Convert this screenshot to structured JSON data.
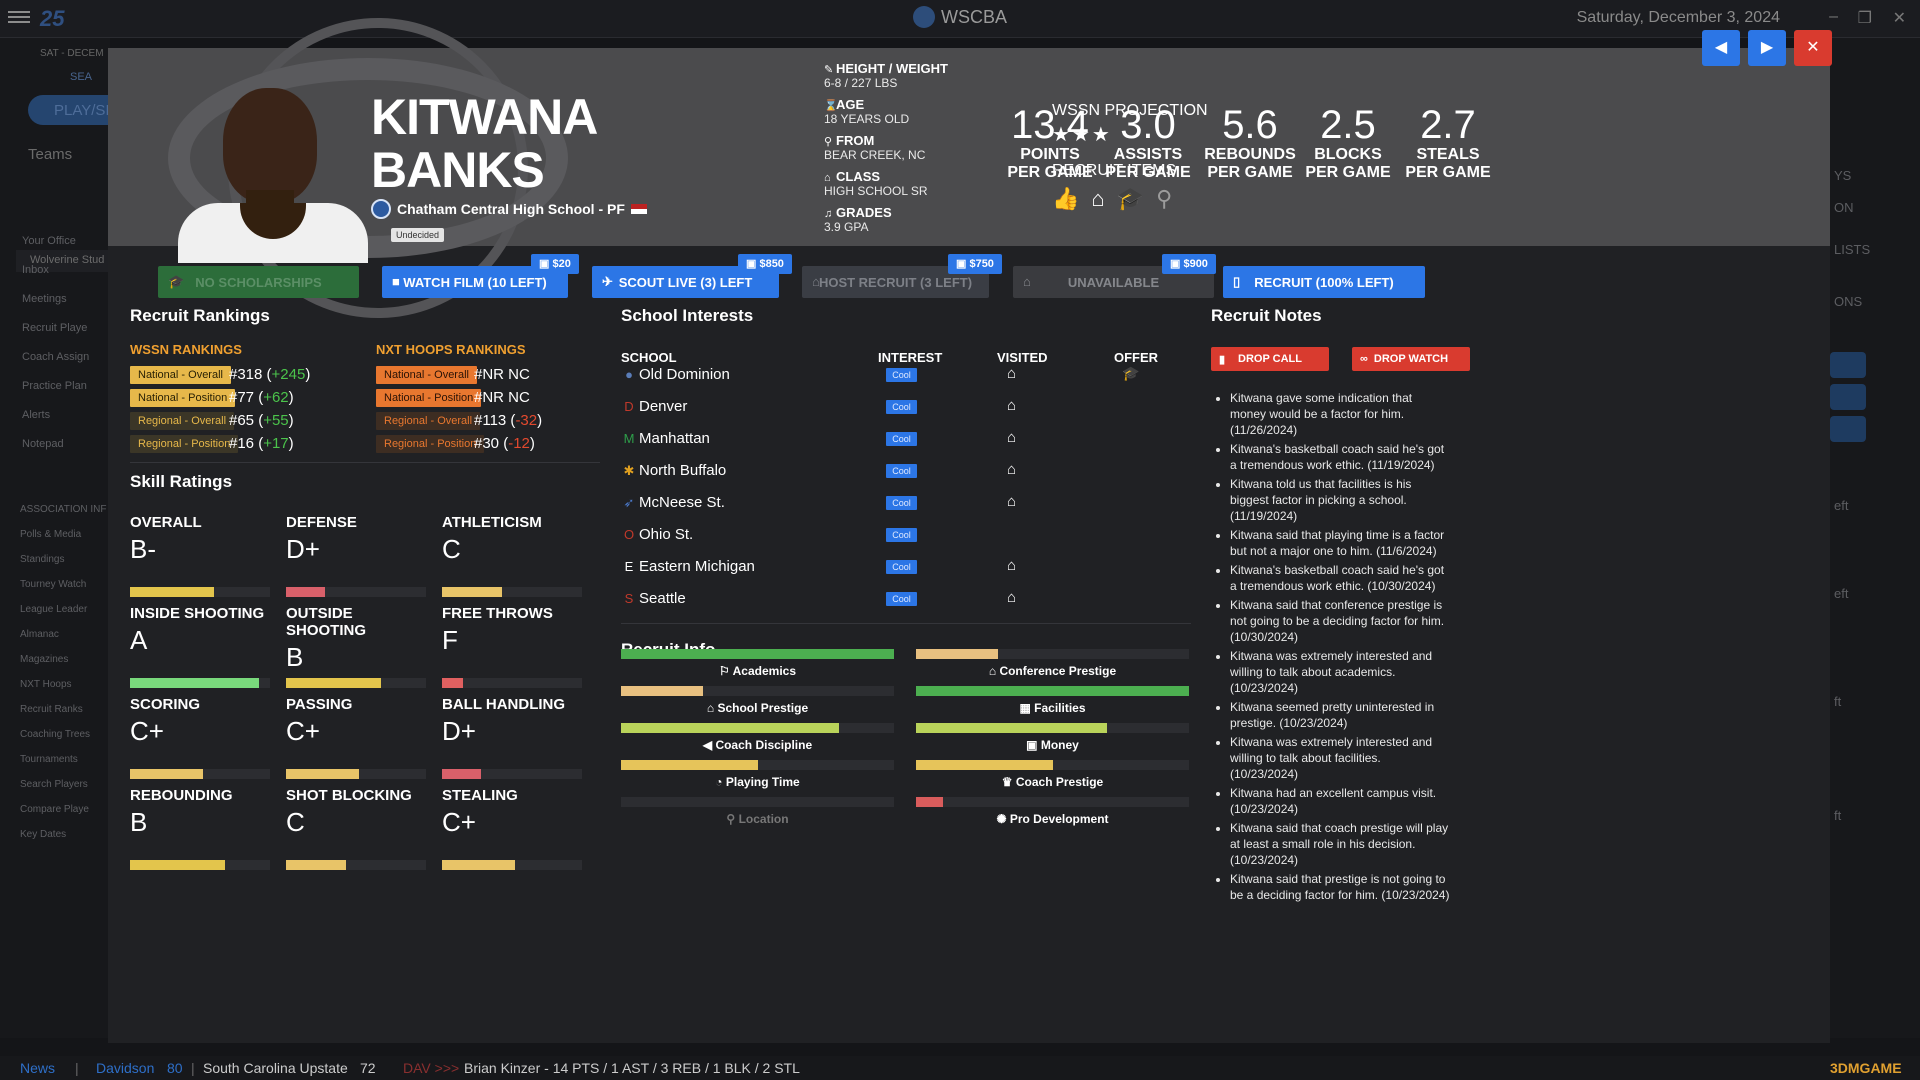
{
  "app": {
    "logo_text": "25",
    "title": "WSCBA",
    "date": "Saturday, December 3, 2024",
    "window_controls": [
      "–",
      "❐",
      "✕"
    ]
  },
  "sidebar": {
    "date_strip": "SAT - DECEM",
    "search": "SEA",
    "play": "PLAY/SI",
    "teams": "Teams",
    "club": "Wolverine Stud",
    "items": [
      "Your Office",
      "Inbox",
      "Meetings",
      "Recruit Playe",
      "Coach Assign",
      "Practice Plan",
      "Alerts",
      "Notepad"
    ],
    "assoc_heading": "ASSOCIATION INF",
    "assoc_items": [
      "Polls & Media",
      "Standings",
      "Tourney Watch",
      "League Leader",
      "Almanac",
      "Magazines",
      "NXT Hoops",
      "Recruit Ranks",
      "Coaching Trees",
      "Tournaments",
      "Search Players",
      "Compare Playe",
      "Key Dates"
    ]
  },
  "right_bg": [
    "YS",
    "ON",
    "LISTS",
    "ONS",
    "eft",
    "eft",
    "ft",
    "ft"
  ],
  "player": {
    "first_name": "KITWANA",
    "last_name": "BANKS",
    "school_line": "Chatham Central High School - PF",
    "status": "Undecided",
    "bio": [
      {
        "icon": "ruler-icon",
        "glyph": "✎",
        "label": "HEIGHT / WEIGHT",
        "value": "6-8 / 227 LBS"
      },
      {
        "icon": "hourglass-icon",
        "glyph": "⌛",
        "label": "AGE",
        "value": "18 YEARS OLD"
      },
      {
        "icon": "location-pin-icon",
        "glyph": "⚲",
        "label": "FROM",
        "value": "BEAR CREEK, NC"
      },
      {
        "icon": "school-icon",
        "glyph": "⌂",
        "label": "CLASS",
        "value": "HIGH SCHOOL SR"
      },
      {
        "icon": "grades-icon",
        "glyph": "♫",
        "label": "GRADES",
        "value": "3.9 GPA"
      }
    ],
    "projection_label": "WSSN PROJECTION",
    "projection_stars": "★★★",
    "projection_star_count": 3,
    "recruit_items_label": "RECRUIT ITEMS",
    "stats": [
      {
        "value": "13.4",
        "line1": "POINTS",
        "line2": "PER GAME"
      },
      {
        "value": "3.0",
        "line1": "ASSISTS",
        "line2": "PER GAME"
      },
      {
        "value": "5.6",
        "line1": "REBOUNDS",
        "line2": "PER GAME"
      },
      {
        "value": "2.5",
        "line1": "BLOCKS",
        "line2": "PER GAME"
      },
      {
        "value": "2.7",
        "line1": "STEALS",
        "line2": "PER GAME"
      }
    ]
  },
  "nav_buttons": {
    "prev": "◀",
    "next": "▶",
    "close": "✕"
  },
  "actions": [
    {
      "label": "NO SCHOLARSHIPS",
      "price": "",
      "color": "#2c6d3a",
      "text_color": "#5b8f66"
    },
    {
      "label": "WATCH FILM (10 LEFT)",
      "price": "$20",
      "color": "#2c76e6",
      "text_color": "#ffffff"
    },
    {
      "label": "SCOUT LIVE (3) LEFT",
      "price": "$850",
      "color": "#2c76e6",
      "text_color": "#ffffff"
    },
    {
      "label": "HOST RECRUIT (3 LEFT)",
      "price": "$750",
      "color": "#3a3d44",
      "text_color": "#7d8087"
    },
    {
      "label": "UNAVAILABLE",
      "price": "$900",
      "color": "#3a3b3f",
      "text_color": "#85878c"
    },
    {
      "label": "RECRUIT (100% LEFT)",
      "price": "",
      "color": "#2c76e6",
      "text_color": "#ffffff"
    }
  ],
  "rankings": {
    "title": "Recruit Rankings",
    "wssn": {
      "heading": "WSSN RANKINGS",
      "rows": [
        {
          "tag": "National - Overall",
          "tag_style": "solid-yellow",
          "rank": "#318",
          "open": " (",
          "delta": "+245",
          "close": ")",
          "dir": "up"
        },
        {
          "tag": "National - Position",
          "tag_style": "solid-yellow",
          "rank": "#77",
          "open": " (",
          "delta": "+62",
          "close": ")",
          "dir": "up"
        },
        {
          "tag": "Regional - Overall",
          "tag_style": "dim-yellow",
          "rank": "#65",
          "open": " (",
          "delta": "+55",
          "close": ")",
          "dir": "up"
        },
        {
          "tag": "Regional - Position",
          "tag_style": "dim-yellow",
          "rank": "#16",
          "open": " (",
          "delta": "+17",
          "close": ")",
          "dir": "up"
        }
      ]
    },
    "nxt": {
      "heading": "NXT HOOPS RANKINGS",
      "rows": [
        {
          "tag": "National - Overall",
          "tag_style": "solid-orange",
          "rank": "#NR NC",
          "open": "",
          "delta": "",
          "close": "",
          "dir": ""
        },
        {
          "tag": "National - Position",
          "tag_style": "solid-orange",
          "rank": "#NR NC",
          "open": "",
          "delta": "",
          "close": "",
          "dir": ""
        },
        {
          "tag": "Regional - Overall",
          "tag_style": "dim-orange",
          "rank": "#113",
          "open": " (",
          "delta": "-32",
          "close": ")",
          "dir": "down"
        },
        {
          "tag": "Regional - Position",
          "tag_style": "dim-orange",
          "rank": "#30",
          "open": " (",
          "delta": "-12",
          "close": ")",
          "dir": "down"
        }
      ]
    }
  },
  "skills": {
    "title": "Skill Ratings",
    "items": [
      {
        "name": "OVERALL",
        "grade": "B-",
        "level": 0.6,
        "color": "#e3c54c"
      },
      {
        "name": "DEFENSE",
        "grade": "D+",
        "level": 0.28,
        "color": "#d9606a"
      },
      {
        "name": "ATHLETICISM",
        "grade": "C",
        "level": 0.43,
        "color": "#e8c468"
      },
      {
        "name": "INSIDE SHOOTING",
        "grade": "A",
        "level": 0.92,
        "color": "#79d97c"
      },
      {
        "name": "OUTSIDE SHOOTING",
        "grade": "B",
        "level": 0.68,
        "color": "#e3c54c"
      },
      {
        "name": "FREE THROWS",
        "grade": "F",
        "level": 0.15,
        "color": "#e06060"
      },
      {
        "name": "SCORING",
        "grade": "C+",
        "level": 0.52,
        "color": "#e8c468"
      },
      {
        "name": "PASSING",
        "grade": "C+",
        "level": 0.52,
        "color": "#e8c468"
      },
      {
        "name": "BALL HANDLING",
        "grade": "D+",
        "level": 0.28,
        "color": "#d9606a"
      },
      {
        "name": "REBOUNDING",
        "grade": "B",
        "level": 0.68,
        "color": "#e3c54c"
      },
      {
        "name": "SHOT BLOCKING",
        "grade": "C",
        "level": 0.43,
        "color": "#e8c468"
      },
      {
        "name": "STEALING",
        "grade": "C+",
        "level": 0.52,
        "color": "#e8c468"
      }
    ]
  },
  "interests": {
    "title": "School Interests",
    "columns": {
      "school": "SCHOOL",
      "interest": "INTEREST",
      "visited": "VISITED",
      "offer": "OFFER"
    },
    "rows": [
      {
        "school": "Old Dominion",
        "logo": "●",
        "logo_color": "#5a7db8",
        "interest": "Cool",
        "visited": true,
        "offer": true
      },
      {
        "school": "Denver",
        "logo": "D",
        "logo_color": "#c0392b",
        "interest": "Cool",
        "visited": true,
        "offer": false
      },
      {
        "school": "Manhattan",
        "logo": "M",
        "logo_color": "#2e9e4a",
        "interest": "Cool",
        "visited": true,
        "offer": false
      },
      {
        "school": "North Buffalo",
        "logo": "✱",
        "logo_color": "#e0a020",
        "interest": "Cool",
        "visited": true,
        "offer": false
      },
      {
        "school": "McNeese St.",
        "logo": "➶",
        "logo_color": "#4a78c8",
        "interest": "Cool",
        "visited": true,
        "offer": false
      },
      {
        "school": "Ohio St.",
        "logo": "O",
        "logo_color": "#c0392b",
        "interest": "Cool",
        "visited": false,
        "offer": false
      },
      {
        "school": "Eastern Michigan",
        "logo": "E",
        "logo_color": "#ffffff",
        "interest": "Cool",
        "visited": true,
        "offer": false
      },
      {
        "school": "Seattle",
        "logo": "S",
        "logo_color": "#c0392b",
        "interest": "Cool",
        "visited": true,
        "offer": false
      }
    ]
  },
  "recruit_info": {
    "title": "Recruit Info",
    "left": [
      {
        "label": "Academics",
        "icon": "academics-icon",
        "glyph": "⚐",
        "level": 1.0,
        "color": "#4caf50"
      },
      {
        "label": "School Prestige",
        "icon": "school-icon",
        "glyph": "⌂",
        "level": 0.3,
        "color": "#e8c080"
      },
      {
        "label": "Coach Discipline",
        "icon": "whistle-icon",
        "glyph": "◀",
        "level": 0.8,
        "color": "#b9d35a"
      },
      {
        "label": "Playing Time",
        "icon": "stopwatch-icon",
        "glyph": "◔",
        "level": 0.5,
        "color": "#e6c45a"
      },
      {
        "label": "Location",
        "icon": "location-pin-icon",
        "glyph": "⚲",
        "level": 0,
        "color": "#555555",
        "dim": true
      }
    ],
    "right": [
      {
        "label": "Conference Prestige",
        "icon": "columns-icon",
        "glyph": "⌂",
        "level": 0.3,
        "color": "#e8c080"
      },
      {
        "label": "Facilities",
        "icon": "facilities-icon",
        "glyph": "▦",
        "level": 1.0,
        "color": "#4caf50"
      },
      {
        "label": "Money",
        "icon": "money-icon",
        "glyph": "▣",
        "level": 0.7,
        "color": "#b9d35a"
      },
      {
        "label": "Coach Prestige",
        "icon": "trophy-icon",
        "glyph": "♛",
        "level": 0.5,
        "color": "#e6c45a"
      },
      {
        "label": "Pro Development",
        "icon": "basketball-icon",
        "glyph": "✺",
        "level": 0.1,
        "color": "#d95c5c"
      }
    ]
  },
  "notes": {
    "title": "Recruit Notes",
    "drop_call": "DROP CALL",
    "drop_watch": "DROP WATCH",
    "items": [
      "Kitwana gave some indication that money would be a factor for him. (11/26/2024)",
      "Kitwana's basketball coach said he's got a tremendous work ethic. (11/19/2024)",
      "Kitwana told us that facilities is his biggest factor in picking a school. (11/19/2024)",
      "Kitwana said that playing time is a factor but not a major one to him. (11/6/2024)",
      "Kitwana's basketball coach said he's got a tremendous work ethic. (10/30/2024)",
      "Kitwana said that conference prestige is not going to be a deciding factor for him. (10/30/2024)",
      "Kitwana was extremely interested and willing to talk about academics. (10/23/2024)",
      "Kitwana seemed pretty uninterested in prestige. (10/23/2024)",
      "Kitwana was extremely interested and willing to talk about facilities. (10/23/2024)",
      "Kitwana had an excellent campus visit. (10/23/2024)",
      "Kitwana said that coach prestige will play at least a small role in his decision. (10/23/2024)",
      "Kitwana said that prestige is not going to be a deciding factor for him. (10/23/2024)"
    ]
  },
  "ticker": {
    "news": "News",
    "sep": "|",
    "team1": "Davidson",
    "score1": "80",
    "team2": "South Carolina Upstate",
    "score2": "72",
    "tag": "DAV >>>",
    "line": "Brian Kinzer - 14 PTS / 1 AST / 3 REB / 1 BLK / 2 STL",
    "watermark": "3DMGAME"
  }
}
